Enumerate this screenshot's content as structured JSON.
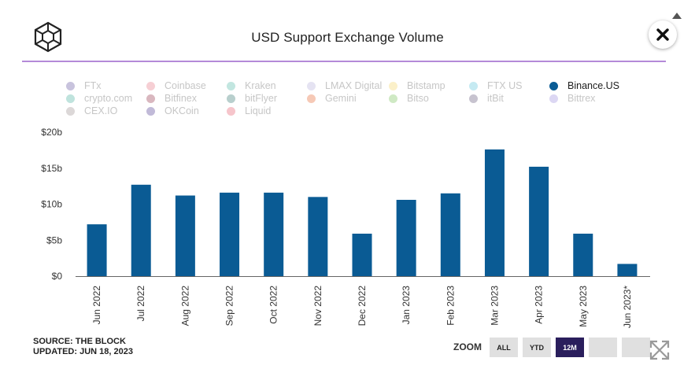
{
  "header": {
    "title": "USD Support Exchange Volume"
  },
  "legend": [
    {
      "label": "FTx",
      "color": "#c8c3dd",
      "active": false
    },
    {
      "label": "Coinbase",
      "color": "#f6cfd4",
      "active": false
    },
    {
      "label": "Kraken",
      "color": "#c2e6e0",
      "active": false
    },
    {
      "label": "LMAX Digital",
      "color": "#e5e3f2",
      "active": false
    },
    {
      "label": "Bitstamp",
      "color": "#fbf0c9",
      "active": false
    },
    {
      "label": "FTX US",
      "color": "#c5eaf2",
      "active": false
    },
    {
      "label": "Binance.US",
      "color": "#0a5b94",
      "active": true
    },
    {
      "label": "crypto.com",
      "color": "#bfe3dd",
      "active": false
    },
    {
      "label": "Bitfinex",
      "color": "#d9b7bf",
      "active": false
    },
    {
      "label": "bitFlyer",
      "color": "#b8cfcd",
      "active": false
    },
    {
      "label": "Gemini",
      "color": "#f6c9b6",
      "active": false
    },
    {
      "label": "Bitso",
      "color": "#cfe9c4",
      "active": false
    },
    {
      "label": "itBit",
      "color": "#c7c3cf",
      "active": false
    },
    {
      "label": "Bittrex",
      "color": "#dcd7f3",
      "active": false
    },
    {
      "label": "CEX.IO",
      "color": "#dcd8d8",
      "active": false
    },
    {
      "label": "OKCoin",
      "color": "#c1bad8",
      "active": false
    },
    {
      "label": "Liquid",
      "color": "#f6c5cb",
      "active": false
    }
  ],
  "chart_data": {
    "type": "bar",
    "categories": [
      "Jun 2022",
      "Jul 2022",
      "Aug 2022",
      "Sep 2022",
      "Oct 2022",
      "Nov 2022",
      "Dec 2022",
      "Jan 2023",
      "Feb 2023",
      "Mar 2023",
      "Apr 2023",
      "May 2023",
      "Jun 2023*"
    ],
    "series": [
      {
        "name": "Binance.US",
        "values": [
          7.2,
          12.7,
          11.2,
          11.6,
          11.6,
          11.0,
          5.9,
          10.6,
          11.5,
          17.6,
          15.2,
          5.9,
          1.7
        ]
      }
    ],
    "y_unit_prefix": "$",
    "y_unit_suffix": "b",
    "ylim": [
      0,
      20
    ],
    "y_ticks": [
      0,
      5,
      10,
      15,
      20
    ],
    "y_tick_labels": [
      "$0",
      "$5b",
      "$10b",
      "$15b",
      "$20b"
    ],
    "bar_color": "#0a5b94",
    "grid": false
  },
  "footer": {
    "source": "SOURCE: THE BLOCK",
    "updated": "UPDATED: JUN 18, 2023",
    "zoom_label": "ZOOM",
    "zoom_buttons": [
      {
        "label": "ALL",
        "active": false
      },
      {
        "label": "YTD",
        "active": false
      },
      {
        "label": "12M",
        "active": true
      },
      {
        "label": "",
        "active": false
      },
      {
        "label": "",
        "active": false
      }
    ]
  }
}
